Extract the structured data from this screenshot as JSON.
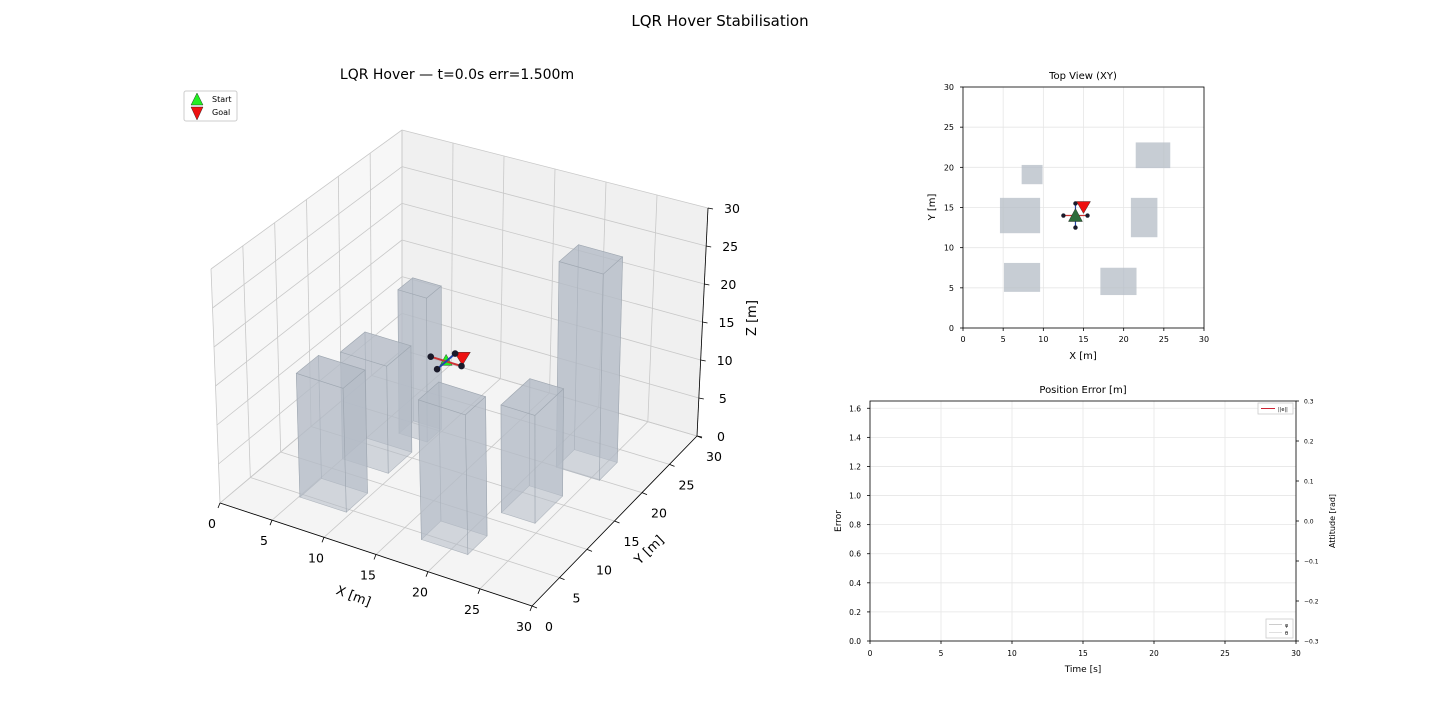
{
  "suptitle": "LQR Hover Stabilisation",
  "colors": {
    "start": "#22ee22",
    "goal": "#ee1111",
    "building": "#b4bcc6",
    "drone_body": "#1a1a2a",
    "arm_red": "#cc3333",
    "arm_blue": "#2244aa",
    "error_line": "#cc2233",
    "grid": "#e6e6e6",
    "pane": "#f2f2f2"
  },
  "chart_data": [
    {
      "id": "view3d",
      "type": "scatter3d",
      "title": "LQR Hover — t=0.0s  err=1.500m",
      "xlabel": "X [m]",
      "ylabel": "Y [m]",
      "zlabel": "Z [m]",
      "xlim": [
        0,
        30
      ],
      "ylim": [
        0,
        30
      ],
      "zlim": [
        0,
        30
      ],
      "xticks": [
        0,
        5,
        10,
        15,
        20,
        25,
        30
      ],
      "yticks": [
        0,
        5,
        10,
        15,
        20,
        25,
        30
      ],
      "zticks": [
        0,
        5,
        10,
        15,
        20,
        25,
        30
      ],
      "legend": {
        "loc": "upper-left",
        "entries": [
          "Start",
          "Goal"
        ]
      },
      "start": [
        14,
        14,
        15
      ],
      "goal": [
        15,
        15,
        15
      ],
      "buildings": [
        {
          "x": [
            5.0,
            9.5
          ],
          "y": [
            11.8,
            15.8
          ],
          "h": 14
        },
        {
          "x": [
            7.0,
            9.8
          ],
          "y": [
            17.9,
            20.3
          ],
          "h": 19
        },
        {
          "x": [
            5.1,
            9.6
          ],
          "y": [
            4.5,
            8.1
          ],
          "h": 16
        },
        {
          "x": [
            17.1,
            21.6
          ],
          "y": [
            4.1,
            7.5
          ],
          "h": 18
        },
        {
          "x": [
            20.9,
            24.2
          ],
          "y": [
            11.3,
            16.2
          ],
          "h": 14
        },
        {
          "x": [
            21.5,
            25.8
          ],
          "y": [
            19.9,
            23.1
          ],
          "h": 27
        }
      ]
    },
    {
      "id": "topview",
      "type": "scatter",
      "title": "Top View (XY)",
      "xlabel": "X [m]",
      "ylabel": "Y [m]",
      "xlim": [
        0,
        30
      ],
      "ylim": [
        0,
        30
      ],
      "xticks": [
        0,
        5,
        10,
        15,
        20,
        25,
        30
      ],
      "yticks": [
        0,
        5,
        10,
        15,
        20,
        25,
        30
      ],
      "grid": true,
      "start": [
        14,
        14
      ],
      "goal": [
        15,
        15
      ],
      "drone_rotors": [
        [
          14,
          15.5
        ],
        [
          14,
          12.5
        ],
        [
          12.5,
          14
        ],
        [
          15.5,
          14
        ]
      ],
      "buildings": [
        {
          "x": [
            7.3,
            9.9
          ],
          "y": [
            17.9,
            20.3
          ]
        },
        {
          "x": [
            21.5,
            25.8
          ],
          "y": [
            19.9,
            23.1
          ]
        },
        {
          "x": [
            4.6,
            9.6
          ],
          "y": [
            11.8,
            16.2
          ]
        },
        {
          "x": [
            20.9,
            24.2
          ],
          "y": [
            11.3,
            16.2
          ]
        },
        {
          "x": [
            5.1,
            9.6
          ],
          "y": [
            4.5,
            8.1
          ]
        },
        {
          "x": [
            17.1,
            21.6
          ],
          "y": [
            4.1,
            7.5
          ]
        }
      ]
    },
    {
      "id": "error",
      "type": "line",
      "title": "Position Error [m]",
      "xlabel": "Time [s]",
      "ylabel": "Error",
      "y2label": "Attitude [rad]",
      "xlim": [
        0,
        30
      ],
      "ylim": [
        0,
        1.65
      ],
      "y2lim": [
        -0.3,
        0.3
      ],
      "xticks": [
        0,
        5,
        10,
        15,
        20,
        25,
        30
      ],
      "yticks": [
        "0.0",
        "0.2",
        "0.4",
        "0.6",
        "0.8",
        "1.0",
        "1.2",
        "1.4",
        "1.6"
      ],
      "y2ticks": [
        "0.3",
        "0.2",
        "0.1",
        "0.0",
        "−0.1",
        "−0.2",
        "−0.3"
      ],
      "grid": true,
      "legend1": {
        "loc": "upper-right",
        "entries": [
          "||e||"
        ]
      },
      "legend2": {
        "loc": "lower-right",
        "entries": [
          "φ",
          "θ"
        ]
      },
      "series": [
        {
          "name": "||e||",
          "x": [],
          "values": []
        },
        {
          "name": "φ",
          "x": [],
          "values": []
        },
        {
          "name": "θ",
          "x": [],
          "values": []
        }
      ]
    }
  ]
}
